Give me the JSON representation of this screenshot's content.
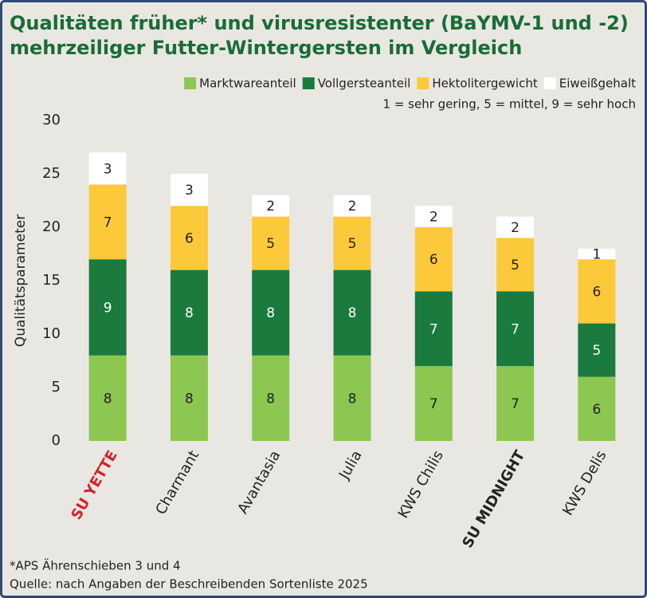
{
  "chart_data": {
    "type": "stacked_bar",
    "title": [
      "Qualitäten früher* und virusresistenter (BaYMV-1 und -2)",
      "mehrzeiliger Futter-Wintergersten im Vergleich"
    ],
    "note": "1 = sehr gering, 5 = mittel, 9 = sehr hoch",
    "ylabel": "Qualitätsparameter",
    "footnotes": [
      "*APS Ährenschieben 3 und 4",
      "Quelle: nach Angaben der Beschreibenden Sortenliste 2025"
    ],
    "categories": [
      "SU YETTE",
      "Charmant",
      "Avantasia",
      "Julia",
      "KWS Chilis",
      "SU MIDNIGHT",
      "KWS Delis"
    ],
    "category_colors": [
      "#d2232a",
      "#222222",
      "#222222",
      "#222222",
      "#222222",
      "#222222",
      "#222222"
    ],
    "category_bold": [
      true,
      false,
      false,
      false,
      false,
      true,
      false
    ],
    "series": [
      {
        "name": "Marktwareanteil",
        "color": "#8cc751",
        "values": [
          8,
          8,
          8,
          8,
          7,
          7,
          6
        ]
      },
      {
        "name": "Vollgersteanteil",
        "color": "#1b7a3e",
        "values": [
          9,
          8,
          8,
          8,
          7,
          7,
          5
        ]
      },
      {
        "name": "Hektolitergewicht",
        "color": "#fcc93a",
        "values": [
          7,
          6,
          5,
          5,
          6,
          5,
          6
        ]
      },
      {
        "name": "Eiweißgehalt",
        "color": "#ffffff",
        "values": [
          3,
          3,
          2,
          2,
          2,
          2,
          1
        ]
      }
    ],
    "label_colors": [
      "#222222",
      "#ffffff",
      "#222222",
      "#222222"
    ],
    "ylim": [
      0,
      30
    ],
    "yticks": [
      0,
      5,
      10,
      15,
      20,
      25,
      30
    ],
    "grid": false,
    "legend": "top-right"
  }
}
